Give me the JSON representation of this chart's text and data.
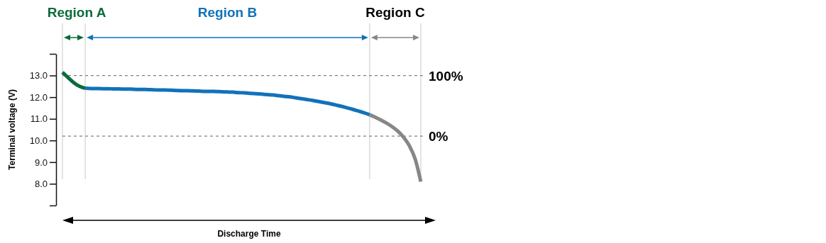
{
  "chart_data": {
    "type": "line",
    "xlabel": "Discharge Time",
    "ylabel": "Terminal voltage (V)",
    "categories": [
      null,
      null,
      null,
      null,
      null,
      null,
      null,
      null,
      null,
      null,
      null,
      null,
      null,
      null,
      null,
      null,
      null,
      null,
      null,
      null,
      null,
      null,
      null,
      null,
      null,
      null,
      null,
      null,
      null,
      null,
      null,
      null,
      null,
      null,
      null,
      null,
      null,
      null,
      null,
      null,
      null,
      null,
      null,
      null,
      null,
      null,
      null,
      null,
      null,
      null,
      null,
      null,
      null,
      null,
      null,
      null,
      null,
      null,
      null,
      null,
      null,
      null,
      null,
      null
    ],
    "series": [
      {
        "color": "#0b6b3a",
        "values": [
          13.15,
          12.9,
          12.67,
          12.5,
          12.41,
          null,
          null,
          null,
          null,
          null,
          null,
          null,
          null,
          null,
          null,
          null,
          null,
          null,
          null,
          null,
          null,
          null,
          null,
          null,
          null,
          null,
          null,
          null,
          null,
          null,
          null,
          null,
          null,
          null,
          null,
          null,
          null,
          null,
          null,
          null,
          null,
          null,
          null,
          null,
          null,
          null,
          null,
          null,
          null,
          null,
          null,
          null,
          null,
          null,
          null,
          null,
          null,
          null,
          null,
          null,
          null,
          null,
          null,
          null
        ]
      },
      {
        "color": "#1172ba",
        "values": [
          null,
          null,
          null,
          null,
          12.41,
          12.4,
          12.4,
          12.39,
          12.39,
          12.38,
          12.38,
          12.37,
          12.37,
          12.36,
          12.36,
          12.35,
          12.34,
          12.33,
          12.33,
          12.32,
          12.31,
          12.3,
          12.3,
          12.29,
          12.28,
          12.27,
          12.27,
          12.26,
          12.25,
          12.24,
          12.23,
          12.21,
          12.2,
          12.18,
          12.16,
          12.14,
          12.12,
          12.1,
          12.07,
          12.04,
          12.01,
          11.97,
          11.93,
          11.89,
          11.85,
          11.8,
          11.75,
          11.7,
          11.64,
          11.58,
          11.51,
          11.44,
          11.36,
          11.28,
          11.19,
          null,
          null,
          null,
          null,
          null,
          null,
          null,
          null,
          null
        ]
      },
      {
        "color": "#878787",
        "values": [
          null,
          null,
          null,
          null,
          null,
          null,
          null,
          null,
          null,
          null,
          null,
          null,
          null,
          null,
          null,
          null,
          null,
          null,
          null,
          null,
          null,
          null,
          null,
          null,
          null,
          null,
          null,
          null,
          null,
          null,
          null,
          null,
          null,
          null,
          null,
          null,
          null,
          null,
          null,
          null,
          null,
          null,
          null,
          null,
          null,
          null,
          null,
          null,
          null,
          null,
          null,
          null,
          null,
          null,
          11.19,
          11.07,
          10.94,
          10.8,
          10.63,
          10.42,
          10.14,
          9.75,
          9.15,
          8.1
        ]
      }
    ],
    "ylim": [
      7,
      14
    ],
    "yticks": [
      {
        "value": 7,
        "label": null
      },
      {
        "value": 8,
        "label": "8.0"
      },
      {
        "value": 9,
        "label": "9.0"
      },
      {
        "value": 10,
        "label": "10.0"
      },
      {
        "value": 11,
        "label": "11.0"
      },
      {
        "value": 12,
        "label": "12.0"
      },
      {
        "value": 13,
        "label": "13.0"
      },
      {
        "value": 14,
        "label": null
      }
    ],
    "ref_lines": [
      {
        "axis": "y",
        "value": 13,
        "color": "#808080",
        "line_style": "dashed"
      },
      {
        "axis": "y",
        "value": 10.2,
        "color": "#808080",
        "line_style": "dashed"
      }
    ],
    "annotations": [
      "Region A",
      "Region B",
      "Region C",
      "100%",
      "0%"
    ],
    "tick_labels": "y",
    "grid": "x",
    "legend": false,
    "marker": "none",
    "line_style": "solid"
  }
}
